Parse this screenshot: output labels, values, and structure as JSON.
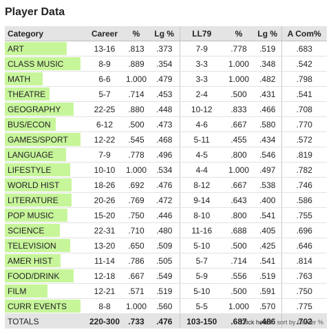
{
  "title": "Player Data",
  "headers": [
    "Category",
    "Career",
    "%",
    "Lg %",
    "LL79",
    "%",
    "Lg %",
    "A Com%"
  ],
  "accent": "#c7f59a",
  "rows": [
    {
      "cat": "ART",
      "bar": 0.82,
      "career": "13-16",
      "pct": ".813",
      "lg": ".373",
      "ll": "7-9",
      "llpct": ".778",
      "lllg": ".519",
      "acom": ".683"
    },
    {
      "cat": "CLASS MUSIC",
      "bar": 1.0,
      "career": "8-9",
      "pct": ".889",
      "lg": ".354",
      "ll": "3-3",
      "llpct": "1.000",
      "lllg": ".348",
      "acom": ".542"
    },
    {
      "cat": "MATH",
      "bar": 0.5,
      "career": "6-6",
      "pct": "1.000",
      "lg": ".479",
      "ll": "3-3",
      "llpct": "1.000",
      "lllg": ".482",
      "acom": ".798"
    },
    {
      "cat": "THEATRE",
      "bar": 0.59,
      "career": "5-7",
      "pct": ".714",
      "lg": ".453",
      "ll": "2-4",
      "llpct": ".500",
      "lllg": ".431",
      "acom": ".541"
    },
    {
      "cat": "GEOGRAPHY",
      "bar": 0.91,
      "career": "22-25",
      "pct": ".880",
      "lg": ".448",
      "ll": "10-12",
      "llpct": ".833",
      "lllg": ".466",
      "acom": ".708"
    },
    {
      "cat": "BUS/ECON",
      "bar": 0.67,
      "career": "6-12",
      "pct": ".500",
      "lg": ".473",
      "ll": "4-6",
      "llpct": ".667",
      "lllg": ".580",
      "acom": ".770"
    },
    {
      "cat": "GAMES/SPORT",
      "bar": 1.0,
      "career": "12-22",
      "pct": ".545",
      "lg": ".468",
      "ll": "5-11",
      "llpct": ".455",
      "lllg": ".434",
      "acom": ".572"
    },
    {
      "cat": "LANGUAGE",
      "bar": 0.81,
      "career": "7-9",
      "pct": ".778",
      "lg": ".496",
      "ll": "4-5",
      "llpct": ".800",
      "lllg": ".546",
      "acom": ".819"
    },
    {
      "cat": "LIFESTYLE",
      "bar": 0.86,
      "career": "10-10",
      "pct": "1.000",
      "lg": ".534",
      "ll": "4-4",
      "llpct": "1.000",
      "lllg": ".497",
      "acom": ".782"
    },
    {
      "cat": "WORLD HIST",
      "bar": 0.88,
      "career": "18-26",
      "pct": ".692",
      "lg": ".476",
      "ll": "8-12",
      "llpct": ".667",
      "lllg": ".538",
      "acom": ".746"
    },
    {
      "cat": "LITERATURE",
      "bar": 0.88,
      "career": "20-26",
      "pct": ".769",
      "lg": ".472",
      "ll": "9-14",
      "llpct": ".643",
      "lllg": ".400",
      "acom": ".586"
    },
    {
      "cat": "POP MUSIC",
      "bar": 0.83,
      "career": "15-20",
      "pct": ".750",
      "lg": ".446",
      "ll": "8-10",
      "llpct": ".800",
      "lllg": ".541",
      "acom": ".755"
    },
    {
      "cat": "SCIENCE",
      "bar": 0.73,
      "career": "22-31",
      "pct": ".710",
      "lg": ".480",
      "ll": "11-16",
      "llpct": ".688",
      "lllg": ".405",
      "acom": ".696"
    },
    {
      "cat": "TELEVISION",
      "bar": 0.86,
      "career": "13-20",
      "pct": ".650",
      "lg": ".509",
      "ll": "5-10",
      "llpct": ".500",
      "lllg": ".425",
      "acom": ".646"
    },
    {
      "cat": "AMER HIST",
      "bar": 0.74,
      "career": "11-14",
      "pct": ".786",
      "lg": ".505",
      "ll": "5-7",
      "llpct": ".714",
      "lllg": ".541",
      "acom": ".814"
    },
    {
      "cat": "FOOD/DRINK",
      "bar": 0.91,
      "career": "12-18",
      "pct": ".667",
      "lg": ".549",
      "ll": "5-9",
      "llpct": ".556",
      "lllg": ".519",
      "acom": ".763"
    },
    {
      "cat": "FILM",
      "bar": 0.56,
      "career": "12-21",
      "pct": ".571",
      "lg": ".519",
      "ll": "5-10",
      "llpct": ".500",
      "lllg": ".591",
      "acom": ".750"
    },
    {
      "cat": "CURR EVENTS",
      "bar": 1.0,
      "career": "8-8",
      "pct": "1.000",
      "lg": ".560",
      "ll": "5-5",
      "llpct": "1.000",
      "lllg": ".570",
      "acom": ".775"
    }
  ],
  "totals": {
    "label": "TOTALS",
    "career": "220-300",
    "pct": ".733",
    "lg": ".476",
    "ll": "103-150",
    "llpct": ".687",
    "lllg": ".486",
    "acom": ".702"
  },
  "footer": {
    "link": "Click here",
    "text": " to sort by Career %"
  }
}
